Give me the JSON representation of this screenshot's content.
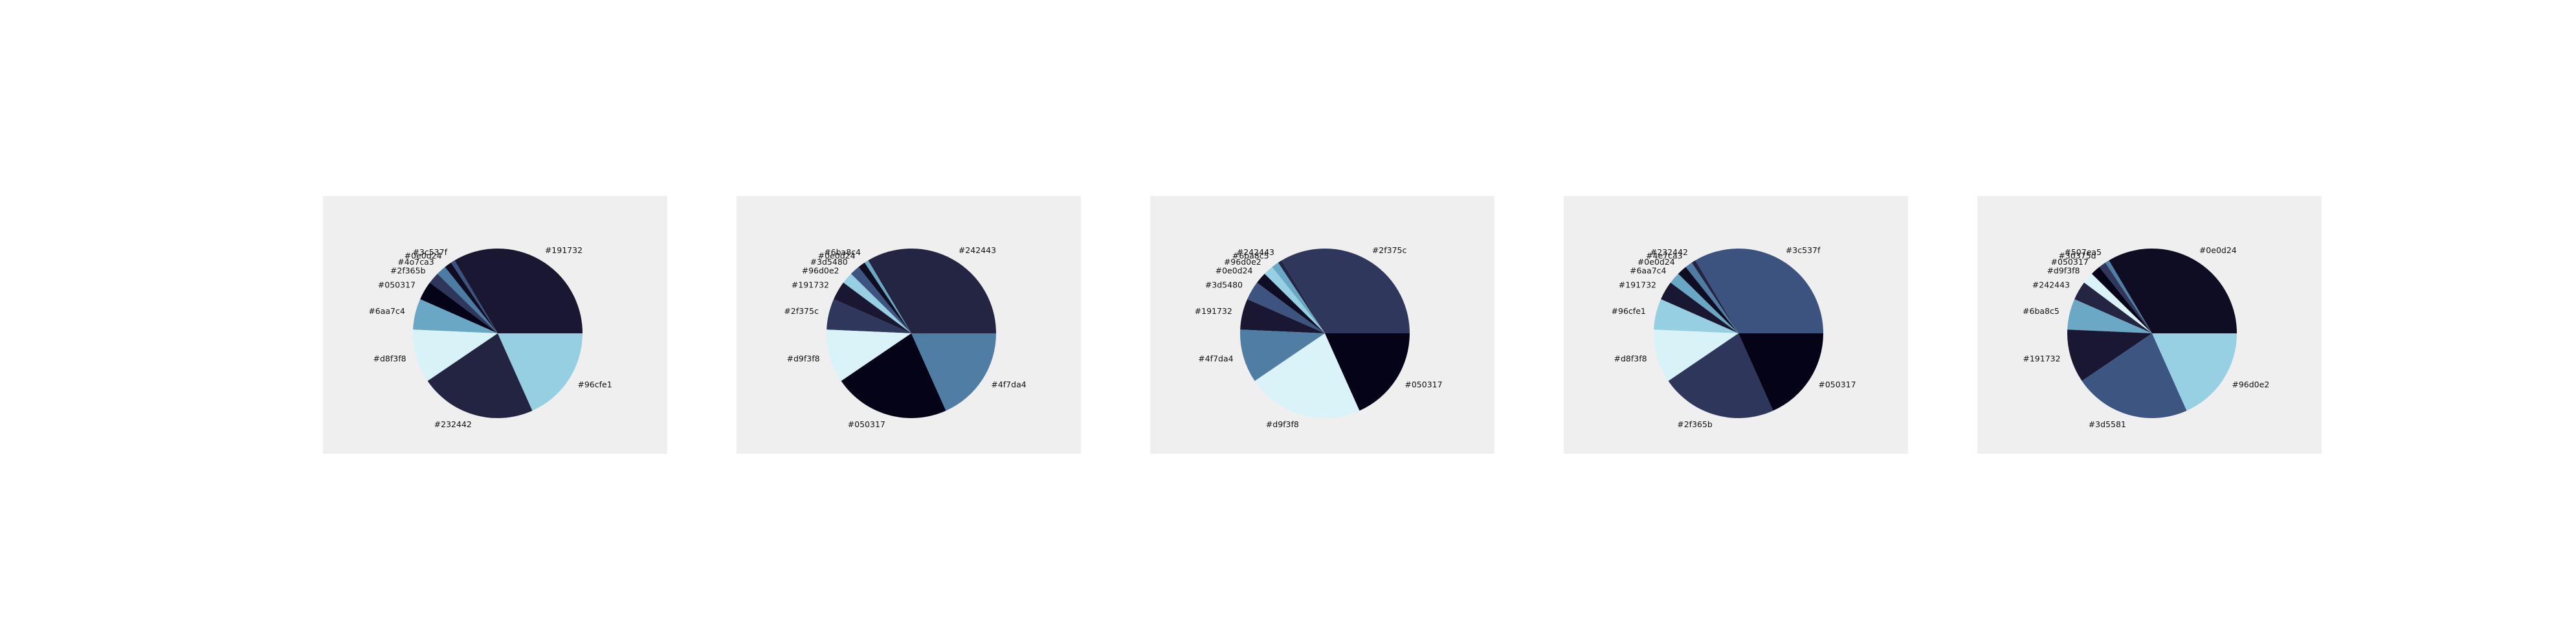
{
  "chart_data": [
    {
      "type": "pie",
      "slices": [
        {
          "label": "#191732",
          "value": 33.5,
          "color": "#191732"
        },
        {
          "label": "#3c537f",
          "value": 0.8,
          "color": "#3c537f"
        },
        {
          "label": "#0e0d24",
          "value": 1.4,
          "color": "#0e0d24"
        },
        {
          "label": "#4o7ca3",
          "value": 1.9,
          "color": "#4d7ca3"
        },
        {
          "label": "#2f365b",
          "value": 2.2,
          "color": "#2f365b"
        },
        {
          "label": "#050317",
          "value": 3.6,
          "color": "#050317"
        },
        {
          "label": "#6aa7c4",
          "value": 5.9,
          "color": "#6aa7c4"
        },
        {
          "label": "#d8f3f8",
          "value": 10.2,
          "color": "#d8f3f8"
        },
        {
          "label": "#232442",
          "value": 22.2,
          "color": "#232442"
        },
        {
          "label": "#96cfe1",
          "value": 18.3,
          "color": "#96cfe1"
        }
      ]
    },
    {
      "type": "pie",
      "slices": [
        {
          "label": "#242443",
          "value": 33.5,
          "color": "#242443"
        },
        {
          "label": "#6ba8c4",
          "value": 0.8,
          "color": "#6ba8c4"
        },
        {
          "label": "#0e0d24",
          "value": 1.4,
          "color": "#0e0d24"
        },
        {
          "label": "#3d5480",
          "value": 1.9,
          "color": "#3d5480"
        },
        {
          "label": "#96d0e2",
          "value": 2.2,
          "color": "#96d0e2"
        },
        {
          "label": "#191732",
          "value": 3.6,
          "color": "#191732"
        },
        {
          "label": "#2f375c",
          "value": 5.9,
          "color": "#2f375c"
        },
        {
          "label": "#d9f3f8",
          "value": 10.2,
          "color": "#d9f3f8"
        },
        {
          "label": "#050317",
          "value": 22.2,
          "color": "#050317"
        },
        {
          "label": "#4f7da4",
          "value": 18.3,
          "color": "#4f7da4"
        }
      ]
    },
    {
      "type": "pie",
      "slices": [
        {
          "label": "#2f375c",
          "value": 33.5,
          "color": "#2f375c"
        },
        {
          "label": "#242443",
          "value": 0.8,
          "color": "#242443"
        },
        {
          "label": "#6ba8c5",
          "value": 1.4,
          "color": "#6ba8c5"
        },
        {
          "label": "#96d0e2",
          "value": 1.9,
          "color": "#96d0e2"
        },
        {
          "label": "#0e0d24",
          "value": 2.2,
          "color": "#0e0d24"
        },
        {
          "label": "#3d5480",
          "value": 3.6,
          "color": "#3d5480"
        },
        {
          "label": "#191732",
          "value": 5.9,
          "color": "#191732"
        },
        {
          "label": "#4f7da4",
          "value": 10.2,
          "color": "#4f7da4"
        },
        {
          "label": "#d9f3f8",
          "value": 22.2,
          "color": "#d9f3f8"
        },
        {
          "label": "#050317",
          "value": 18.3,
          "color": "#050317"
        }
      ]
    },
    {
      "type": "pie",
      "slices": [
        {
          "label": "#3c537f",
          "value": 33.5,
          "color": "#3c537f"
        },
        {
          "label": "#232442",
          "value": 0.8,
          "color": "#232442"
        },
        {
          "label": "#4e7ca3",
          "value": 1.4,
          "color": "#4e7ca3"
        },
        {
          "label": "#0e0d24",
          "value": 1.9,
          "color": "#0e0d24"
        },
        {
          "label": "#6aa7c4",
          "value": 2.2,
          "color": "#6aa7c4"
        },
        {
          "label": "#191732",
          "value": 3.6,
          "color": "#191732"
        },
        {
          "label": "#96cfe1",
          "value": 5.9,
          "color": "#96cfe1"
        },
        {
          "label": "#d8f3f8",
          "value": 10.2,
          "color": "#d8f3f8"
        },
        {
          "label": "#2f365b",
          "value": 22.2,
          "color": "#2f365b"
        },
        {
          "label": "#050317",
          "value": 18.3,
          "color": "#050317"
        }
      ]
    },
    {
      "type": "pie",
      "slices": [
        {
          "label": "#0e0d24",
          "value": 33.5,
          "color": "#0e0d24"
        },
        {
          "label": "#507ea5",
          "value": 0.8,
          "color": "#507ea5"
        },
        {
          "label": "#30375d",
          "value": 1.4,
          "color": "#30375d"
        },
        {
          "label": "#050317",
          "value": 1.9,
          "color": "#050317"
        },
        {
          "label": "#d9f3f8",
          "value": 2.2,
          "color": "#d9f3f8"
        },
        {
          "label": "#242443",
          "value": 3.6,
          "color": "#242443"
        },
        {
          "label": "#6ba8c5",
          "value": 5.9,
          "color": "#6ba8c5"
        },
        {
          "label": "#191732",
          "value": 10.2,
          "color": "#191732"
        },
        {
          "label": "#3d5581",
          "value": 22.2,
          "color": "#3d5581"
        },
        {
          "label": "#96d0e2",
          "value": 18.3,
          "color": "#96d0e2"
        }
      ]
    }
  ]
}
